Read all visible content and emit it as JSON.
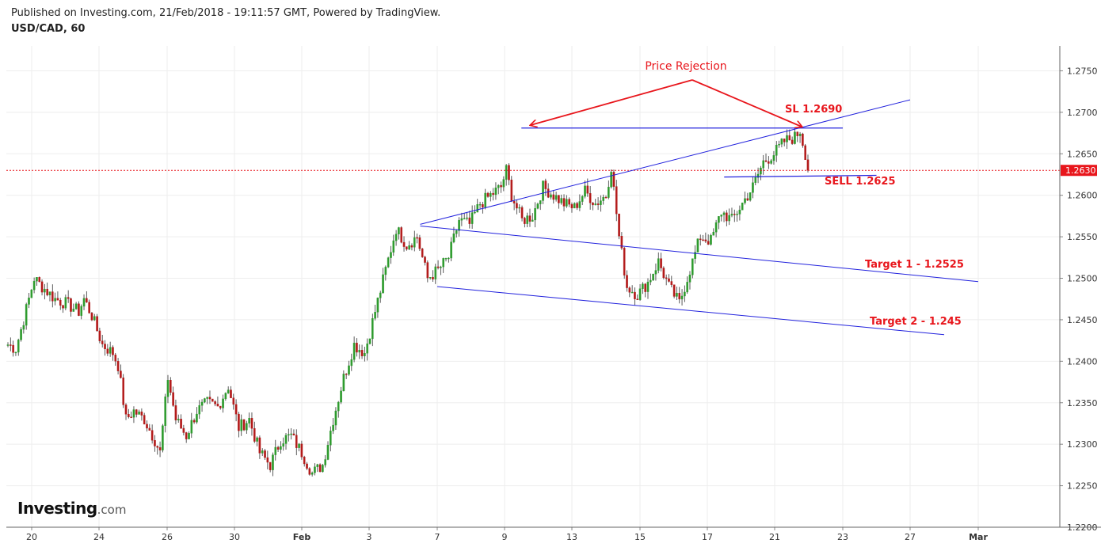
{
  "header": {
    "published": "Published on Investing.com, 21/Feb/2018 - 19:11:57 GMT, Powered by TradingView.",
    "symbol": "USD/CAD, 60"
  },
  "logo": {
    "brand": "Investing",
    "domain": ".com"
  },
  "chart_data": {
    "type": "candlestick",
    "symbol": "USD/CAD",
    "interval": "60",
    "ylim": [
      1.22,
      1.278
    ],
    "y_ticks": [
      "1.2750",
      "1.2700",
      "1.2650",
      "1.2600",
      "1.2550",
      "1.2500",
      "1.2450",
      "1.2400",
      "1.2350",
      "1.2300",
      "1.2250",
      "1.2200"
    ],
    "x_ticks": [
      "20",
      "24",
      "26",
      "30",
      "Feb",
      "3",
      "7",
      "9",
      "13",
      "15",
      "17",
      "21",
      "23",
      "27",
      "Mar"
    ],
    "current_price": {
      "label": "1.2630",
      "value": 1.263,
      "color": "#e8161c"
    },
    "grid": true,
    "colors": {
      "up": "#2e9b2e",
      "down": "#b31b1b",
      "trendline": "#2222dd",
      "annotation": "#e8161c"
    },
    "price_path": [
      [
        0,
        1.242
      ],
      [
        3,
        1.2415
      ],
      [
        6,
        1.245
      ],
      [
        10,
        1.25
      ],
      [
        13,
        1.249
      ],
      [
        18,
        1.2475
      ],
      [
        22,
        1.247
      ],
      [
        27,
        1.246
      ],
      [
        29,
        1.2475
      ],
      [
        32,
        1.2455
      ],
      [
        36,
        1.242
      ],
      [
        40,
        1.241
      ],
      [
        42,
        1.2395
      ],
      [
        45,
        1.233
      ],
      [
        48,
        1.234
      ],
      [
        52,
        1.233
      ],
      [
        56,
        1.2305
      ],
      [
        58,
        1.229
      ],
      [
        61,
        1.238
      ],
      [
        64,
        1.233
      ],
      [
        68,
        1.231
      ],
      [
        72,
        1.234
      ],
      [
        76,
        1.235
      ],
      [
        80,
        1.2345
      ],
      [
        84,
        1.237
      ],
      [
        88,
        1.232
      ],
      [
        92,
        1.233
      ],
      [
        96,
        1.229
      ],
      [
        100,
        1.2275
      ],
      [
        104,
        1.2305
      ],
      [
        108,
        1.231
      ],
      [
        112,
        1.229
      ],
      [
        116,
        1.2265
      ],
      [
        120,
        1.2275
      ],
      [
        124,
        1.233
      ],
      [
        128,
        1.238
      ],
      [
        132,
        1.242
      ],
      [
        136,
        1.241
      ],
      [
        140,
        1.246
      ],
      [
        144,
        1.251
      ],
      [
        148,
        1.256
      ],
      [
        152,
        1.254
      ],
      [
        156,
        1.255
      ],
      [
        160,
        1.25
      ],
      [
        164,
        1.251
      ],
      [
        168,
        1.2525
      ],
      [
        172,
        1.257
      ],
      [
        176,
        1.2565
      ],
      [
        180,
        1.259
      ],
      [
        184,
        1.26
      ],
      [
        188,
        1.261
      ],
      [
        190,
        1.263
      ],
      [
        192,
        1.26
      ],
      [
        196,
        1.257
      ],
      [
        200,
        1.2575
      ],
      [
        204,
        1.261
      ],
      [
        208,
        1.26
      ],
      [
        212,
        1.259
      ],
      [
        216,
        1.2585
      ],
      [
        220,
        1.2605
      ],
      [
        224,
        1.259
      ],
      [
        228,
        1.26
      ],
      [
        230,
        1.2635
      ],
      [
        233,
        1.255
      ],
      [
        236,
        1.249
      ],
      [
        240,
        1.248
      ],
      [
        244,
        1.2495
      ],
      [
        248,
        1.252
      ],
      [
        252,
        1.249
      ],
      [
        256,
        1.247
      ],
      [
        260,
        1.251
      ],
      [
        264,
        1.255
      ],
      [
        268,
        1.2545
      ],
      [
        272,
        1.258
      ],
      [
        276,
        1.257
      ],
      [
        280,
        1.259
      ],
      [
        284,
        1.261
      ],
      [
        288,
        1.264
      ],
      [
        292,
        1.265
      ],
      [
        296,
        1.2665
      ],
      [
        300,
        1.267
      ],
      [
        302,
        1.2678
      ],
      [
        304,
        1.265
      ],
      [
        305,
        1.263
      ]
    ],
    "trendlines": [
      {
        "name": "rising-upper",
        "from": {
          "x": "Feb 6",
          "y": 1.2565
        },
        "to": {
          "x": "Feb 27",
          "y": 1.2715
        }
      },
      {
        "name": "resistance",
        "from": {
          "x": "Feb 10",
          "y": 1.2681
        },
        "to": {
          "x": "Feb 23",
          "y": 1.2681
        }
      },
      {
        "name": "channel-upper",
        "from": {
          "x": "Feb 6",
          "y": 1.2563
        },
        "to": {
          "x": "Feb 29",
          "y": 1.2496
        }
      },
      {
        "name": "channel-lower",
        "from": {
          "x": "Feb 7",
          "y": 1.249
        },
        "to": {
          "x": "Feb 28",
          "y": 1.2432
        }
      },
      {
        "name": "sell-line",
        "from": {
          "x": "Feb 18",
          "y": 1.2622
        },
        "to": {
          "x": "Feb 25",
          "y": 1.2624
        }
      }
    ],
    "annotations": [
      {
        "text": "Price Rejection",
        "style": "plain"
      },
      {
        "text": "SL 1.2690",
        "style": "bold"
      },
      {
        "text": "SELL 1.2625",
        "style": "bold"
      },
      {
        "text": "Target 1 - 1.2525",
        "style": "bold"
      },
      {
        "text": "Target 2 - 1.245",
        "style": "bold"
      }
    ]
  }
}
